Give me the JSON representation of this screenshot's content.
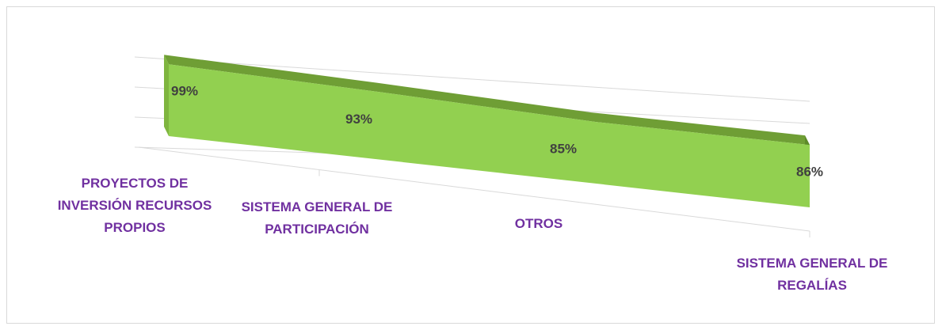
{
  "chart_data": {
    "type": "area3d",
    "categories": [
      "PROYECTOS DE INVERSIÓN RECURSOS PROPIOS",
      "SISTEMA GENERAL DE PARTICIPACIÓN",
      "OTROS",
      "SISTEMA GENERAL DE REGALÍAS"
    ],
    "values": [
      99,
      93,
      85,
      86
    ],
    "value_labels": [
      "99%",
      "93%",
      "85%",
      "86%"
    ],
    "color": "#92d050",
    "ylim": [
      0,
      120
    ],
    "yticks": [
      0,
      40,
      80,
      120
    ],
    "grid": true
  }
}
